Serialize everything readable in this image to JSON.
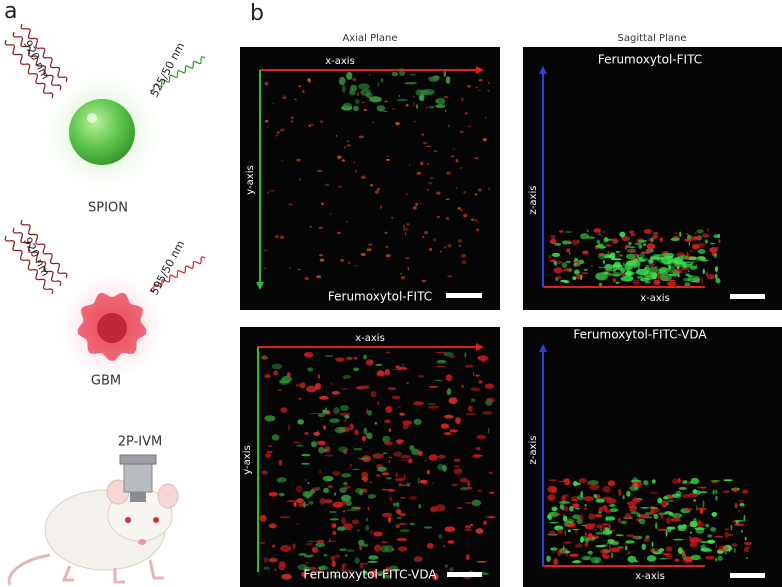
{
  "panel_a": {
    "label": "a",
    "spion": {
      "excitation": "920 nm",
      "emission": "525/50 nm",
      "name": "SPION"
    },
    "gbm": {
      "excitation": "920 nm",
      "emission": "595/50 nm",
      "name": "GBM"
    },
    "microscope": "2P-IVM"
  },
  "panel_b": {
    "label": "b",
    "column_titles": [
      "Axial Plane",
      "Sagittal Plane"
    ],
    "images": [
      {
        "title": "Ferumoxytol-FITC",
        "horizontal_axis": "x-axis",
        "vertical_axis": "y-axis"
      },
      {
        "title": "Ferumoxytol-FITC",
        "horizontal_axis": "x-axis",
        "vertical_axis": "z-axis"
      },
      {
        "title": "Ferumoxytol-FITC-VDA",
        "horizontal_axis": "x-axis",
        "vertical_axis": "y-axis"
      },
      {
        "title": "Ferumoxytol-FITC-VDA",
        "horizontal_axis": "x-axis",
        "vertical_axis": "z-axis"
      }
    ]
  }
}
